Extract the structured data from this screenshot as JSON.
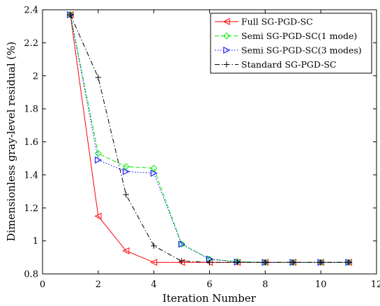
{
  "chart_data": {
    "type": "line",
    "xlabel": "Iteration Number",
    "ylabel": "Dimensionless gray-level residual (%)",
    "xlim": [
      0,
      12
    ],
    "ylim": [
      0.8,
      2.4
    ],
    "xticks": [
      0,
      2,
      4,
      6,
      8,
      10,
      12
    ],
    "xtick_labels": [
      "0",
      "2",
      "4",
      "6",
      "8",
      "10",
      "12"
    ],
    "yticks": [
      0.8,
      1.0,
      1.2,
      1.4,
      1.6,
      1.8,
      2.0,
      2.2,
      2.4
    ],
    "ytick_labels": [
      "0.8",
      "1",
      "1.2",
      "1.4",
      "1.6",
      "1.8",
      "2",
      "2.2",
      "2.4"
    ],
    "grid": false,
    "legend_position": "top-right",
    "x": [
      1,
      2,
      3,
      4,
      5,
      6,
      7,
      8,
      9,
      10,
      11
    ],
    "series": [
      {
        "name": "Full SG-PGD-SC",
        "color": "#ff0000",
        "line_style": "solid",
        "marker": "triangle-left",
        "values": [
          2.37,
          1.15,
          0.94,
          0.87,
          0.87,
          0.87,
          0.87,
          0.87,
          0.87,
          0.87,
          0.87
        ]
      },
      {
        "name": "Semi SG-PGD-SC(1 mode)",
        "color": "#00ee00",
        "line_style": "dashed",
        "marker": "diamond",
        "values": [
          2.37,
          1.53,
          1.45,
          1.44,
          0.98,
          0.89,
          0.875,
          0.87,
          0.87,
          0.87,
          0.87
        ]
      },
      {
        "name": "Semi SG-PGD-SC(3 modes)",
        "color": "#0000ff",
        "line_style": "dotted",
        "marker": "triangle-right",
        "values": [
          2.37,
          1.49,
          1.42,
          1.41,
          0.98,
          0.89,
          0.872,
          0.87,
          0.87,
          0.87,
          0.87
        ]
      },
      {
        "name": "Standard SG-PGD-SC",
        "color": "#000000",
        "line_style": "dashdot",
        "marker": "plus",
        "values": [
          2.37,
          1.99,
          1.28,
          0.97,
          0.878,
          0.87,
          0.87,
          0.87,
          0.87,
          0.87,
          0.87
        ]
      }
    ]
  }
}
